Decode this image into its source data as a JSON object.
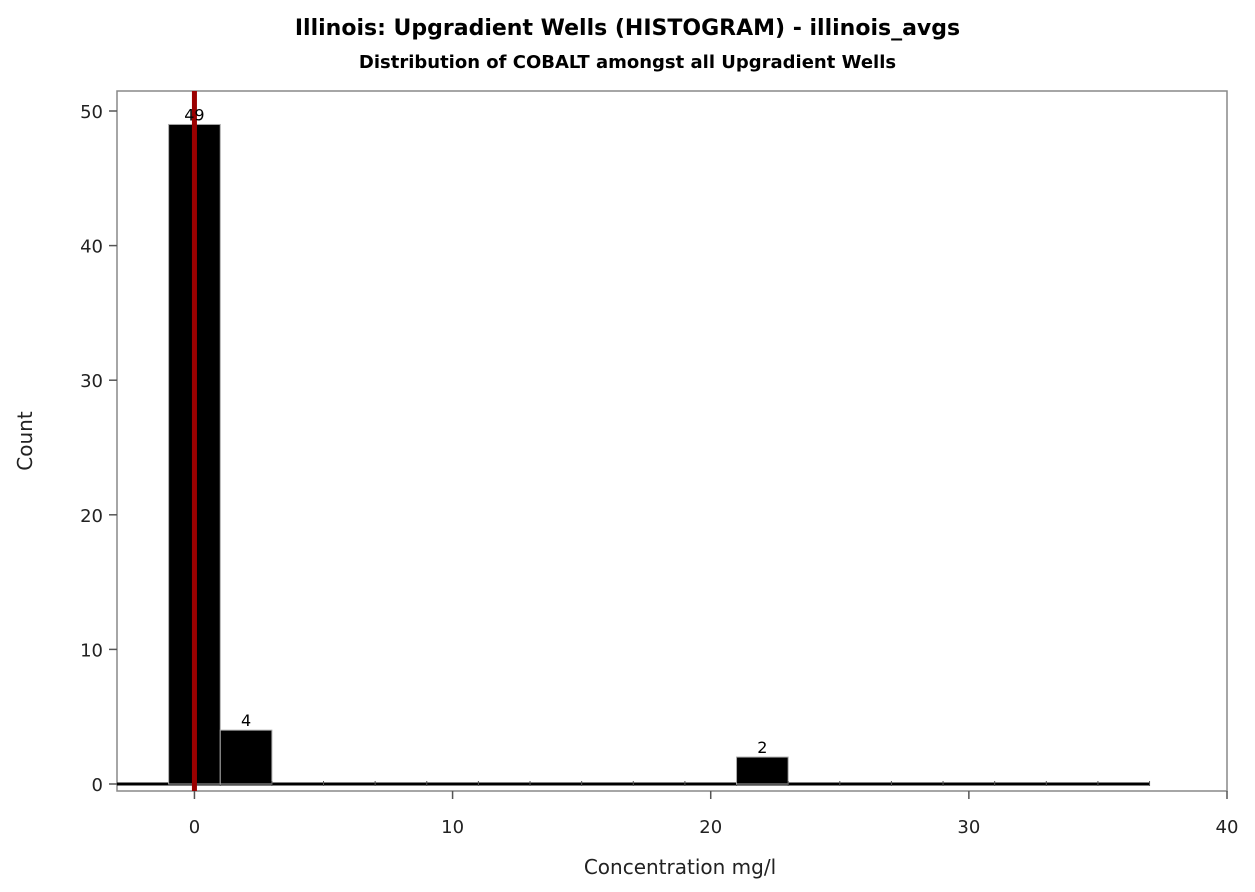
{
  "chart_data": {
    "type": "bar",
    "title": "Illinois: Upgradient Wells (HISTOGRAM) - illinois_avgs",
    "subtitle": "Distribution of COBALT amongst all Upgradient Wells",
    "xlabel": "Concentration mg/l",
    "ylabel": "Count",
    "xlim": [
      -3,
      40
    ],
    "ylim": [
      0,
      51
    ],
    "xticks": [
      0,
      10,
      20,
      30,
      40
    ],
    "yticks": [
      0,
      10,
      20,
      30,
      40,
      50
    ],
    "bin_width": 2,
    "bins": [
      {
        "center": 0,
        "count": 49
      },
      {
        "center": 2,
        "count": 4
      },
      {
        "center": 4,
        "count": 0
      },
      {
        "center": 6,
        "count": 0
      },
      {
        "center": 8,
        "count": 0
      },
      {
        "center": 10,
        "count": 0
      },
      {
        "center": 12,
        "count": 0
      },
      {
        "center": 14,
        "count": 0
      },
      {
        "center": 16,
        "count": 0
      },
      {
        "center": 18,
        "count": 0
      },
      {
        "center": 20,
        "count": 0
      },
      {
        "center": 22,
        "count": 2
      },
      {
        "center": 24,
        "count": 0
      },
      {
        "center": 26,
        "count": 0
      },
      {
        "center": 28,
        "count": 0
      },
      {
        "center": 30,
        "count": 0
      },
      {
        "center": 32,
        "count": 0
      },
      {
        "center": 34,
        "count": 0
      },
      {
        "center": 36,
        "count": 0
      }
    ],
    "baseline_extent": [
      -3,
      37
    ],
    "reference_line": {
      "x": 0,
      "color": "#9b0000"
    },
    "bar_color": "#000000",
    "grid": false,
    "legend": "none"
  }
}
